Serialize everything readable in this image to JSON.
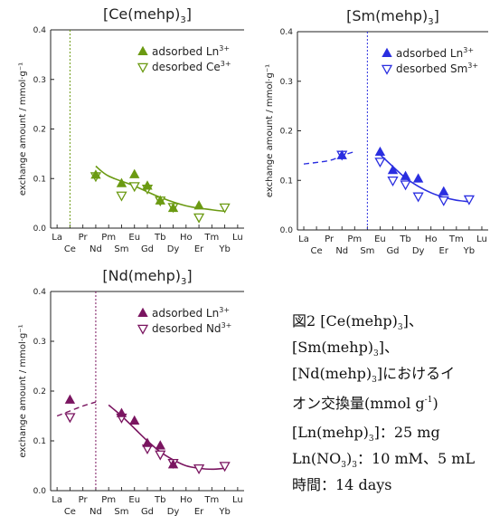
{
  "chart_data": [
    {
      "type": "scatter",
      "title_main": "[Ce(mehp)",
      "title_sub": "3",
      "title_end": "]",
      "ylabel": "exchange amount / mmol·g⁻¹",
      "ylim": [
        0,
        0.4
      ],
      "yticks": [
        "0.0",
        "0.1",
        "0.2",
        "0.3",
        "0.4"
      ],
      "color": "#6b9a12",
      "legend": {
        "placement": "top-right",
        "adsorbed": "adsorbed Ln",
        "adsorbed_sup": "3+",
        "desorbed": "desorbed Ce",
        "desorbed_sup": "3+"
      },
      "xticks_top": [
        "La",
        "Pr",
        "Pm",
        "Eu",
        "Tb",
        "Ho",
        "Tm",
        "Lu"
      ],
      "xticks_bottom": [
        "Ce",
        "Nd",
        "Sm",
        "Gd",
        "Dy",
        "Er",
        "Yb"
      ],
      "host_element": "Ce",
      "adsorbed": [
        {
          "x": "Nd",
          "y": 0.107
        },
        {
          "x": "Sm",
          "y": 0.09
        },
        {
          "x": "Eu",
          "y": 0.108
        },
        {
          "x": "Gd",
          "y": 0.085
        },
        {
          "x": "Tb",
          "y": 0.055
        },
        {
          "x": "Dy",
          "y": 0.04
        },
        {
          "x": "Er",
          "y": 0.045
        }
      ],
      "desorbed": [
        {
          "x": "Nd",
          "y": 0.105
        },
        {
          "x": "Sm",
          "y": 0.066
        },
        {
          "x": "Eu",
          "y": 0.085
        },
        {
          "x": "Gd",
          "y": 0.08
        },
        {
          "x": "Tb",
          "y": 0.056
        },
        {
          "x": "Dy",
          "y": 0.043
        },
        {
          "x": "Er",
          "y": 0.022
        },
        {
          "x": "Yb",
          "y": 0.042
        }
      ],
      "fit_solid": [
        {
          "x": "Nd",
          "y": 0.125
        },
        {
          "x": "Pm",
          "y": 0.105
        },
        {
          "x": "Eu",
          "y": 0.085
        },
        {
          "x": "Tb",
          "y": 0.062
        },
        {
          "x": "Ho",
          "y": 0.045
        },
        {
          "x": "Tm",
          "y": 0.037
        },
        {
          "x": "Yb",
          "y": 0.034
        }
      ],
      "fit_dashed": []
    },
    {
      "type": "scatter",
      "title_main": "[Sm(mehp)",
      "title_sub": "3",
      "title_end": "]",
      "ylabel": "exchange amount / mmol·g⁻¹",
      "ylim": [
        0,
        0.4
      ],
      "yticks": [
        "0.0",
        "0.1",
        "0.2",
        "0.3",
        "0.4"
      ],
      "color": "#2a2ee0",
      "legend": {
        "placement": "top-right",
        "adsorbed": "adsorbed Ln",
        "adsorbed_sup": "3+",
        "desorbed": "desorbed Sm",
        "desorbed_sup": "3+"
      },
      "xticks_top": [
        "La",
        "Pr",
        "Pm",
        "Eu",
        "Tb",
        "Ho",
        "Tm",
        "Lu"
      ],
      "xticks_bottom": [
        "Ce",
        "Nd",
        "Sm",
        "Gd",
        "Dy",
        "Er",
        "Yb"
      ],
      "host_element": "Sm",
      "adsorbed": [
        {
          "x": "Nd",
          "y": 0.15
        },
        {
          "x": "Eu",
          "y": 0.157
        },
        {
          "x": "Gd",
          "y": 0.12
        },
        {
          "x": "Tb",
          "y": 0.108
        },
        {
          "x": "Dy",
          "y": 0.103
        },
        {
          "x": "Er",
          "y": 0.077
        }
      ],
      "desorbed": [
        {
          "x": "Nd",
          "y": 0.152
        },
        {
          "x": "Eu",
          "y": 0.138
        },
        {
          "x": "Gd",
          "y": 0.1
        },
        {
          "x": "Tb",
          "y": 0.092
        },
        {
          "x": "Dy",
          "y": 0.068
        },
        {
          "x": "Er",
          "y": 0.06
        },
        {
          "x": "Yb",
          "y": 0.062
        }
      ],
      "fit_solid": [
        {
          "x": "Eu",
          "y": 0.152
        },
        {
          "x": "Gd",
          "y": 0.128
        },
        {
          "x": "Tb",
          "y": 0.105
        },
        {
          "x": "Dy",
          "y": 0.088
        },
        {
          "x": "Ho",
          "y": 0.075
        },
        {
          "x": "Er",
          "y": 0.066
        },
        {
          "x": "Tm",
          "y": 0.06
        },
        {
          "x": "Yb",
          "y": 0.057
        }
      ],
      "fit_dashed": [
        {
          "x": "La",
          "y": 0.133
        },
        {
          "x": "Pr",
          "y": 0.14
        },
        {
          "x": "Nd",
          "y": 0.15
        },
        {
          "x": "Pm",
          "y": 0.158
        }
      ]
    },
    {
      "type": "scatter",
      "title_main": "[Nd(mehp)",
      "title_sub": "3",
      "title_end": "]",
      "ylabel": "exchange amount / mmol·g⁻¹",
      "ylim": [
        0,
        0.4
      ],
      "yticks": [
        "0.0",
        "0.1",
        "0.2",
        "0.3",
        "0.4"
      ],
      "color": "#7a1560",
      "legend": {
        "placement": "top-right",
        "adsorbed": "adsorbed Ln",
        "adsorbed_sup": "3+",
        "desorbed": "desorbed Nd",
        "desorbed_sup": "3+"
      },
      "xticks_top": [
        "La",
        "Pr",
        "Pm",
        "Eu",
        "Tb",
        "Ho",
        "Tm",
        "Lu"
      ],
      "xticks_bottom": [
        "Ce",
        "Nd",
        "Sm",
        "Gd",
        "Dy",
        "Er",
        "Yb"
      ],
      "host_element": "Nd",
      "adsorbed": [
        {
          "x": "Ce",
          "y": 0.182
        },
        {
          "x": "Sm",
          "y": 0.155
        },
        {
          "x": "Eu",
          "y": 0.14
        },
        {
          "x": "Gd",
          "y": 0.095
        },
        {
          "x": "Tb",
          "y": 0.09
        },
        {
          "x": "Dy",
          "y": 0.052
        }
      ],
      "desorbed": [
        {
          "x": "Ce",
          "y": 0.148
        },
        {
          "x": "Sm",
          "y": 0.147
        },
        {
          "x": "Gd",
          "y": 0.085
        },
        {
          "x": "Tb",
          "y": 0.073
        },
        {
          "x": "Dy",
          "y": 0.056
        },
        {
          "x": "Er",
          "y": 0.045
        },
        {
          "x": "Yb",
          "y": 0.05
        }
      ],
      "fit_solid": [
        {
          "x": "Pm",
          "y": 0.172
        },
        {
          "x": "Sm",
          "y": 0.15
        },
        {
          "x": "Eu",
          "y": 0.125
        },
        {
          "x": "Gd",
          "y": 0.1
        },
        {
          "x": "Tb",
          "y": 0.078
        },
        {
          "x": "Dy",
          "y": 0.062
        },
        {
          "x": "Ho",
          "y": 0.05
        },
        {
          "x": "Er",
          "y": 0.045
        },
        {
          "x": "Tm",
          "y": 0.043
        },
        {
          "x": "Yb",
          "y": 0.045
        }
      ],
      "fit_dashed": [
        {
          "x": "La",
          "y": 0.15
        },
        {
          "x": "Ce",
          "y": 0.16
        },
        {
          "x": "Pr",
          "y": 0.17
        },
        {
          "x": "Nd",
          "y": 0.178
        }
      ]
    }
  ],
  "caption": {
    "line1a": "図2 [Ce(mehp)",
    "line1_sub": "3",
    "line1b": "]、",
    "line2a": "[Sm(mehp)",
    "line2_sub": "3",
    "line2b": "]、",
    "line3a": "[Nd(mehp)",
    "line3_sub": "3",
    "line3b": "]におけるイ",
    "line4a": "オン交換量(mmol g",
    "line4_sup": "-1",
    "line4b": ")",
    "cond1a": "[Ln(mehp)",
    "cond1_sub": "3",
    "cond1b": "]：25 mg",
    "cond2a": "Ln(NO",
    "cond2_sub": "3",
    "cond2b": ")",
    "cond2_sub2": "3",
    "cond2c": "：10 mM、5 mL",
    "cond3": "時間：14 days"
  }
}
